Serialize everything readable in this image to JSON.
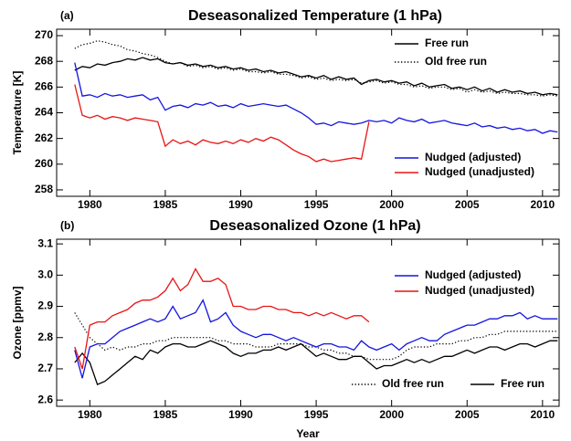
{
  "chart_data": [
    {
      "type": "line",
      "label": "(a)",
      "title": "Deseasonalized Temperature (1 hPa)",
      "ylabel": "Temperature [K]",
      "x": [
        1979,
        1979.5,
        1980,
        1980.5,
        1981,
        1981.5,
        1982,
        1982.5,
        1983,
        1983.5,
        1984,
        1984.5,
        1985,
        1985.5,
        1986,
        1986.5,
        1987,
        1987.5,
        1988,
        1988.5,
        1989,
        1989.5,
        1990,
        1990.5,
        1991,
        1991.5,
        1992,
        1992.5,
        1993,
        1993.5,
        1994,
        1994.5,
        1995,
        1995.5,
        1996,
        1996.5,
        1997,
        1997.5,
        1998,
        1998.5,
        1999,
        1999.5,
        2000,
        2000.5,
        2001,
        2001.5,
        2002,
        2002.5,
        2003,
        2003.5,
        2004,
        2004.5,
        2005,
        2005.5,
        2006,
        2006.5,
        2007,
        2007.5,
        2008,
        2008.5,
        2009,
        2009.5,
        2010,
        2010.5,
        2011
      ],
      "xlim": [
        1977.8,
        2011.1
      ],
      "xticks": [
        1980,
        1985,
        1990,
        1995,
        2000,
        2005,
        2010
      ],
      "ylim": [
        257.5,
        270.5
      ],
      "yticks": [
        258,
        260,
        262,
        264,
        266,
        268,
        270
      ],
      "series": [
        {
          "name": "Free run",
          "color": "#000000",
          "line_style": "solid",
          "values": [
            267.3,
            267.6,
            267.5,
            267.8,
            267.7,
            267.9,
            268.0,
            268.2,
            268.1,
            268.3,
            268.1,
            268.2,
            267.9,
            267.8,
            267.9,
            267.7,
            267.8,
            267.6,
            267.7,
            267.5,
            267.6,
            267.4,
            267.5,
            267.3,
            267.4,
            267.2,
            267.3,
            267.1,
            267.2,
            267.0,
            266.8,
            266.9,
            266.7,
            266.9,
            266.6,
            266.8,
            266.6,
            266.7,
            266.2,
            266.5,
            266.6,
            266.4,
            266.5,
            266.3,
            266.4,
            266.1,
            266.3,
            266.0,
            266.1,
            266.2,
            265.9,
            266.0,
            265.8,
            266.0,
            265.7,
            265.9,
            265.6,
            265.8,
            265.6,
            265.7,
            265.5,
            265.6,
            265.4,
            265.5,
            265.4
          ]
        },
        {
          "name": "Old free run",
          "color": "#000000",
          "line_style": "dotted",
          "values": [
            269.0,
            269.3,
            269.4,
            269.6,
            269.5,
            269.3,
            269.2,
            268.9,
            268.8,
            268.6,
            268.5,
            268.3,
            268.0,
            267.8,
            267.9,
            267.6,
            267.7,
            267.5,
            267.6,
            267.4,
            267.5,
            267.3,
            267.4,
            267.2,
            267.2,
            267.1,
            267.2,
            267.0,
            267.0,
            266.9,
            266.7,
            266.8,
            266.6,
            266.7,
            266.5,
            266.6,
            266.5,
            266.6,
            266.3,
            266.4,
            266.5,
            266.3,
            266.4,
            266.2,
            266.2,
            266.0,
            266.1,
            265.9,
            266.0,
            266.0,
            265.8,
            265.9,
            265.6,
            265.8,
            265.6,
            265.7,
            265.5,
            265.6,
            265.5,
            265.5,
            265.4,
            265.4,
            265.3,
            265.4,
            265.3
          ]
        },
        {
          "name": "Nudged (adjusted)",
          "color": "#1414e0",
          "line_style": "solid",
          "values": [
            267.9,
            265.3,
            265.4,
            265.2,
            265.5,
            265.3,
            265.4,
            265.2,
            265.3,
            265.4,
            265.0,
            265.2,
            264.2,
            264.5,
            264.6,
            264.4,
            264.7,
            264.6,
            264.8,
            264.5,
            264.6,
            264.4,
            264.7,
            264.5,
            264.6,
            264.7,
            264.6,
            264.5,
            264.6,
            264.3,
            264.0,
            263.6,
            263.1,
            263.2,
            263.0,
            263.3,
            263.2,
            263.1,
            263.2,
            263.4,
            263.3,
            263.4,
            263.2,
            263.6,
            263.4,
            263.3,
            263.5,
            263.2,
            263.3,
            263.4,
            263.2,
            263.1,
            263.0,
            263.2,
            262.9,
            263.0,
            262.8,
            262.9,
            262.7,
            262.8,
            262.6,
            262.7,
            262.4,
            262.6,
            262.5
          ]
        },
        {
          "name": "Nudged (unadjusted)",
          "color": "#e81414",
          "line_style": "solid",
          "values": [
            266.2,
            263.8,
            263.6,
            263.8,
            263.5,
            263.7,
            263.6,
            263.4,
            263.6,
            263.5,
            263.4,
            263.3,
            261.4,
            261.9,
            261.6,
            261.8,
            261.5,
            261.9,
            261.7,
            261.6,
            261.8,
            261.6,
            261.9,
            261.7,
            262.0,
            261.8,
            262.1,
            261.9,
            261.5,
            261.1,
            260.8,
            260.6,
            260.2,
            260.4,
            260.2,
            260.3,
            260.4,
            260.5,
            260.4,
            263.3,
            null,
            null,
            null,
            null,
            null,
            null,
            null,
            null,
            null,
            null,
            null,
            null,
            null,
            null,
            null,
            null,
            null,
            null,
            null,
            null,
            null,
            null,
            null,
            null,
            null
          ]
        }
      ]
    },
    {
      "type": "line",
      "label": "(b)",
      "title": "Deseasonalized Ozone (1 hPa)",
      "ylabel": "Ozone [ppmv]",
      "xlabel": "Year",
      "x": [
        1979,
        1979.5,
        1980,
        1980.5,
        1981,
        1981.5,
        1982,
        1982.5,
        1983,
        1983.5,
        1984,
        1984.5,
        1985,
        1985.5,
        1986,
        1986.5,
        1987,
        1987.5,
        1988,
        1988.5,
        1989,
        1989.5,
        1990,
        1990.5,
        1991,
        1991.5,
        1992,
        1992.5,
        1993,
        1993.5,
        1994,
        1994.5,
        1995,
        1995.5,
        1996,
        1996.5,
        1997,
        1997.5,
        1998,
        1998.5,
        1999,
        1999.5,
        2000,
        2000.5,
        2001,
        2001.5,
        2002,
        2002.5,
        2003,
        2003.5,
        2004,
        2004.5,
        2005,
        2005.5,
        2006,
        2006.5,
        2007,
        2007.5,
        2008,
        2008.5,
        2009,
        2009.5,
        2010,
        2010.5,
        2011
      ],
      "xlim": [
        1977.8,
        2011.1
      ],
      "xticks": [
        1980,
        1985,
        1990,
        1995,
        2000,
        2005,
        2010
      ],
      "ylim": [
        2.58,
        3.115
      ],
      "yticks": [
        2.6,
        2.7,
        2.8,
        2.9,
        {
          "value": 3,
          "label": "3.0"
        },
        3.1
      ],
      "series": [
        {
          "name": "Free run",
          "color": "#000000",
          "line_style": "solid",
          "values": [
            2.72,
            2.75,
            2.72,
            2.65,
            2.66,
            2.68,
            2.7,
            2.72,
            2.74,
            2.73,
            2.76,
            2.75,
            2.77,
            2.78,
            2.78,
            2.77,
            2.77,
            2.78,
            2.79,
            2.78,
            2.77,
            2.75,
            2.74,
            2.75,
            2.75,
            2.76,
            2.76,
            2.77,
            2.76,
            2.77,
            2.78,
            2.76,
            2.74,
            2.75,
            2.74,
            2.73,
            2.73,
            2.74,
            2.74,
            2.72,
            2.7,
            2.71,
            2.71,
            2.72,
            2.73,
            2.72,
            2.73,
            2.72,
            2.73,
            2.74,
            2.74,
            2.75,
            2.76,
            2.75,
            2.76,
            2.77,
            2.77,
            2.76,
            2.77,
            2.78,
            2.78,
            2.77,
            2.78,
            2.79,
            2.79
          ]
        },
        {
          "name": "Old free run",
          "color": "#000000",
          "line_style": "dotted",
          "values": [
            2.88,
            2.84,
            2.8,
            2.78,
            2.76,
            2.77,
            2.76,
            2.77,
            2.77,
            2.78,
            2.78,
            2.79,
            2.79,
            2.8,
            2.8,
            2.8,
            2.8,
            2.8,
            2.8,
            2.79,
            2.79,
            2.78,
            2.78,
            2.78,
            2.77,
            2.77,
            2.77,
            2.78,
            2.78,
            2.78,
            2.78,
            2.77,
            2.77,
            2.76,
            2.76,
            2.75,
            2.75,
            2.74,
            2.74,
            2.73,
            2.73,
            2.73,
            2.73,
            2.74,
            2.76,
            2.77,
            2.77,
            2.77,
            2.78,
            2.78,
            2.78,
            2.79,
            2.79,
            2.8,
            2.8,
            2.81,
            2.81,
            2.82,
            2.82,
            2.82,
            2.82,
            2.82,
            2.82,
            2.82,
            2.82
          ]
        },
        {
          "name": "Nudged (adjusted)",
          "color": "#1414e0",
          "line_style": "solid",
          "values": [
            2.76,
            2.67,
            2.77,
            2.78,
            2.78,
            2.8,
            2.82,
            2.83,
            2.84,
            2.85,
            2.86,
            2.85,
            2.86,
            2.9,
            2.86,
            2.87,
            2.88,
            2.92,
            2.85,
            2.86,
            2.88,
            2.84,
            2.82,
            2.81,
            2.8,
            2.81,
            2.81,
            2.8,
            2.79,
            2.8,
            2.79,
            2.78,
            2.77,
            2.78,
            2.78,
            2.77,
            2.77,
            2.76,
            2.79,
            2.77,
            2.76,
            2.77,
            2.78,
            2.76,
            2.78,
            2.79,
            2.8,
            2.79,
            2.79,
            2.81,
            2.82,
            2.83,
            2.84,
            2.84,
            2.85,
            2.86,
            2.86,
            2.87,
            2.87,
            2.88,
            2.86,
            2.87,
            2.86,
            2.86,
            2.86
          ]
        },
        {
          "name": "Nudged (unadjusted)",
          "color": "#e81414",
          "line_style": "solid",
          "values": [
            2.77,
            2.7,
            2.84,
            2.85,
            2.85,
            2.87,
            2.88,
            2.89,
            2.91,
            2.92,
            2.92,
            2.93,
            2.95,
            2.99,
            2.95,
            2.97,
            3.02,
            2.98,
            2.98,
            2.99,
            2.97,
            2.9,
            2.9,
            2.89,
            2.89,
            2.9,
            2.9,
            2.89,
            2.89,
            2.88,
            2.88,
            2.87,
            2.88,
            2.87,
            2.88,
            2.87,
            2.86,
            2.87,
            2.87,
            2.85,
            null,
            null,
            null,
            null,
            null,
            null,
            null,
            null,
            null,
            null,
            null,
            null,
            null,
            null,
            null,
            null,
            null,
            null,
            null,
            null,
            null,
            null,
            null,
            null,
            null
          ]
        }
      ]
    }
  ]
}
